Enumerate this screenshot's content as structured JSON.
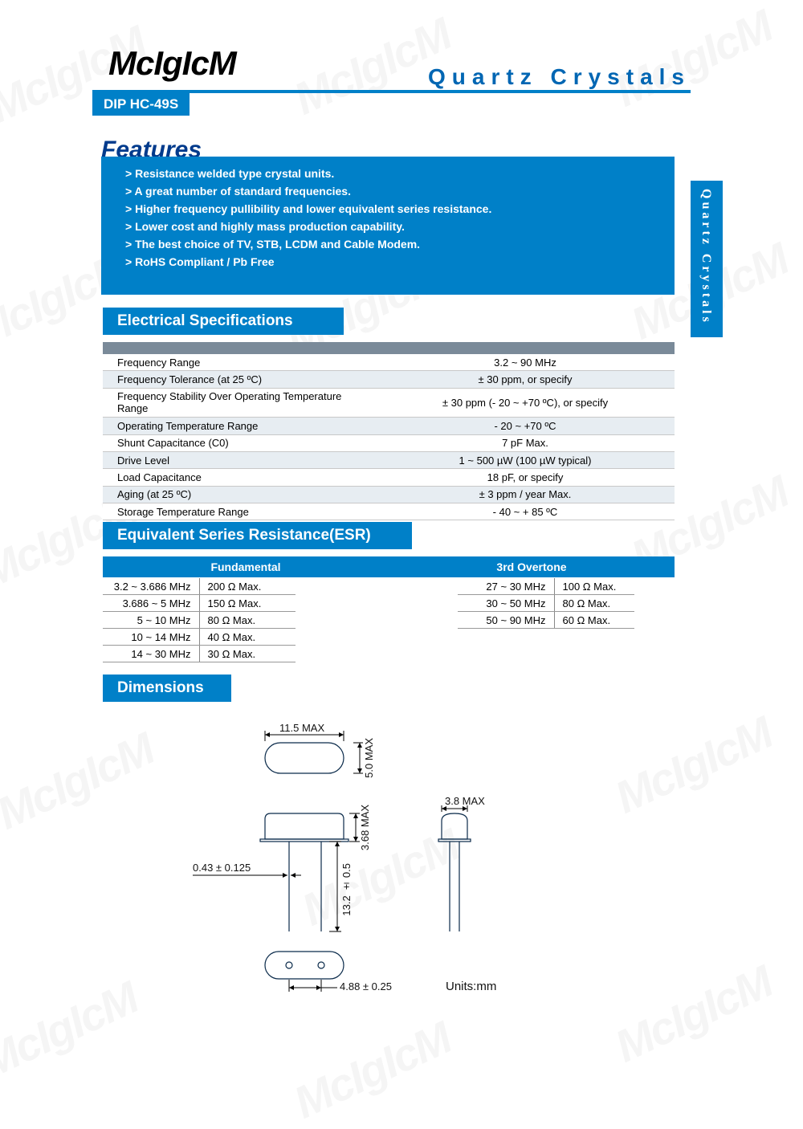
{
  "brand": "McIgIcM",
  "header_title": "Quartz Crystals",
  "model": "DIP HC-49S",
  "side_tab": "Quartz Crystals",
  "features": {
    "title": "Features",
    "items": [
      "Resistance welded type crystal units.",
      "A great number of standard frequencies.",
      "Higher frequency pullibility and lower equivalent series resistance.",
      "Lower cost and highly mass production capability.",
      "The best choice of TV, STB, LCDM and Cable Modem.",
      "RoHS Compliant / Pb Free"
    ]
  },
  "sections": {
    "elec": "Electrical Specifications",
    "esr": "Equivalent Series Resistance(ESR)",
    "dim": "Dimensions"
  },
  "spec_rows": [
    [
      "Frequency Range",
      "3.2 ~ 90 MHz"
    ],
    [
      "Frequency Tolerance (at 25 ºC)",
      "± 30 ppm,  or  specify"
    ],
    [
      "Frequency Stability Over Operating Temperature Range",
      "± 30 ppm (- 20 ~ +70 ºC), or specify"
    ],
    [
      "Operating Temperature Range",
      "- 20 ~ +70 ºC"
    ],
    [
      "Shunt Capacitance (C0)",
      "7 pF Max."
    ],
    [
      "Drive Level",
      "1 ~ 500 µW (100 µW typical)"
    ],
    [
      "Load Capacitance",
      "18 pF, or specify"
    ],
    [
      "Aging (at 25 ºC)",
      "± 3 ppm / year Max."
    ],
    [
      "Storage Temperature Range",
      "- 40 ~ + 85 ºC"
    ]
  ],
  "esr": {
    "fundamental_header": "Fundamental",
    "overtone_header": "3rd Overtone",
    "fundamental": [
      [
        "3.2 ~ 3.686 MHz",
        "200 Ω Max."
      ],
      [
        "3.686 ~ 5 MHz",
        "150 Ω Max."
      ],
      [
        "5 ~ 10 MHz",
        "80 Ω Max."
      ],
      [
        "10 ~ 14 MHz",
        "40 Ω Max."
      ],
      [
        "14 ~ 30 MHz",
        "30 Ω Max."
      ]
    ],
    "overtone": [
      [
        "27 ~ 30 MHz",
        "100 Ω Max."
      ],
      [
        "30 ~ 50 MHz",
        "80 Ω Max."
      ],
      [
        "50 ~ 90 MHz",
        "60 Ω Max."
      ]
    ]
  },
  "dimensions": {
    "w_top": "11.5 MAX",
    "h_top": "5.0 MAX",
    "w_side": "3.8 MAX",
    "h_body": "3.68 MAX",
    "h_lead": "13.2 ± 0.5",
    "lead_dia": "0.43 ± 0.125",
    "pitch": "4.88 ± 0.25",
    "units_label": "Units:mm"
  },
  "colors": {
    "blue": "#0080c8",
    "dark_blue": "#003a8c",
    "gray": "#7a8a99",
    "row_alt": "#e7edf2"
  },
  "watermark_text": "McIgIcM"
}
